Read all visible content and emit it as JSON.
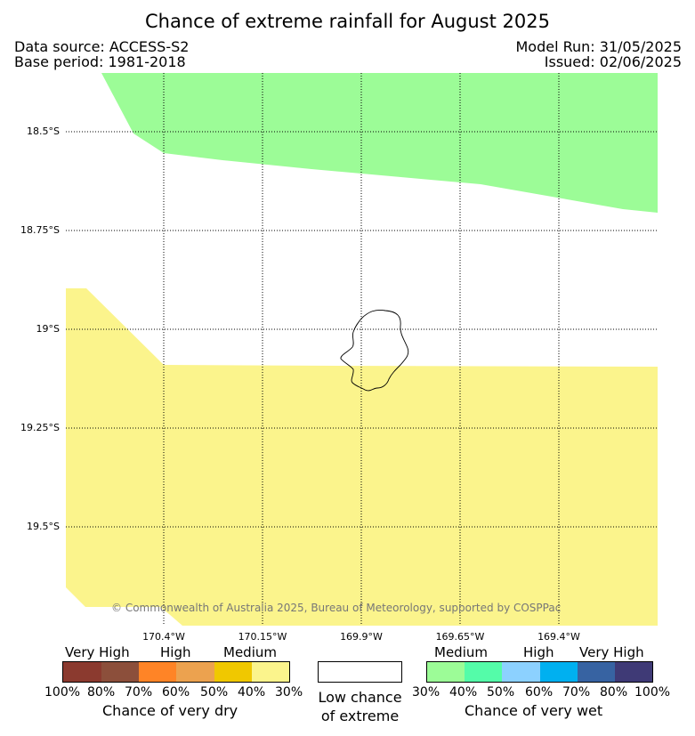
{
  "title": "Chance of extreme rainfall for August 2025",
  "header": {
    "data_source": "Data source: ACCESS-S2",
    "base_period": "Base period: 1981-2018",
    "model_run": "Model Run: 31/05/2025",
    "issued": "Issued: 02/06/2025"
  },
  "map": {
    "lat_labels": [
      "18.5°S",
      "18.75°S",
      "19°S",
      "19.25°S",
      "19.5°S"
    ],
    "lon_labels": [
      "170.4°W",
      "170.15°W",
      "169.9°W",
      "169.65°W",
      "169.4°W"
    ],
    "regions": [
      {
        "name": "Medium chance of very wet (30-40%)",
        "color": "#9cfc97"
      },
      {
        "name": "Medium chance of very dry (30-40%)",
        "color": "#fbf48c"
      }
    ],
    "copyright": "© Commonwealth of Australia 2025, Bureau of Meteorology, supported by COSPPac"
  },
  "legend": {
    "dry": {
      "categories": [
        "Very High",
        "High",
        "Medium"
      ],
      "colors": [
        "#8b3a2f",
        "#8c4f3b",
        "#ff8426",
        "#eca24f",
        "#f0c800",
        "#fbf48c"
      ],
      "ticks": [
        "100%",
        "80%",
        "70%",
        "60%",
        "50%",
        "40%",
        "30%"
      ],
      "caption": "Chance of very dry"
    },
    "low": {
      "color": "#ffffff",
      "caption_line1": "Low chance",
      "caption_line2": "of extreme"
    },
    "wet": {
      "categories": [
        "Medium",
        "High",
        "Very High"
      ],
      "colors": [
        "#9cfc97",
        "#54fca9",
        "#8cd1ff",
        "#00b0f0",
        "#3763a2",
        "#3f3a76"
      ],
      "ticks": [
        "30%",
        "40%",
        "50%",
        "60%",
        "70%",
        "80%",
        "100%"
      ],
      "caption": "Chance of very wet"
    }
  }
}
